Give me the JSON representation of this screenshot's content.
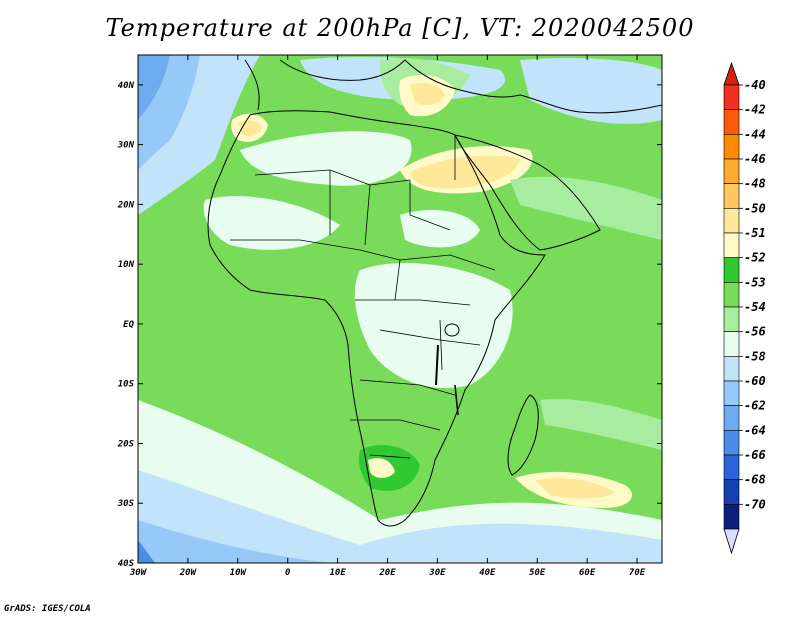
{
  "title": "Temperature at 200hPa [C], VT: 2020042500",
  "credit": "GrADS: IGES/COLA",
  "map": {
    "lon_range": [
      -30,
      75
    ],
    "lat_range": [
      -40,
      45
    ],
    "lon_ticks": [
      "30W",
      "20W",
      "10W",
      "0",
      "10E",
      "20E",
      "30E",
      "40E",
      "50E",
      "60E",
      "70E"
    ],
    "lat_ticks": [
      "40N",
      "30N",
      "20N",
      "10N",
      "EQ",
      "10S",
      "20S",
      "30S",
      "40S"
    ]
  },
  "colorbar": {
    "labels": [
      "-40",
      "-42",
      "-44",
      "-46",
      "-48",
      "-50",
      "-51",
      "-52",
      "-53",
      "-54",
      "-56",
      "-58",
      "-60",
      "-62",
      "-64",
      "-66",
      "-68",
      "-70"
    ],
    "colors": [
      "#f03020",
      "#fa5a0a",
      "#ff8c00",
      "#ffaa30",
      "#ffc860",
      "#ffe89a",
      "#fffac8",
      "#32c832",
      "#78dc5a",
      "#a8eca0",
      "#e8fcf0",
      "#c2e4fa",
      "#96c8f8",
      "#6eaaf0",
      "#4a8ce8",
      "#2a64d8",
      "#1440b0",
      "#0a1e80"
    ],
    "top_arrow_color": "#d81e10",
    "bottom_arrow_color": "#dcdcff"
  }
}
